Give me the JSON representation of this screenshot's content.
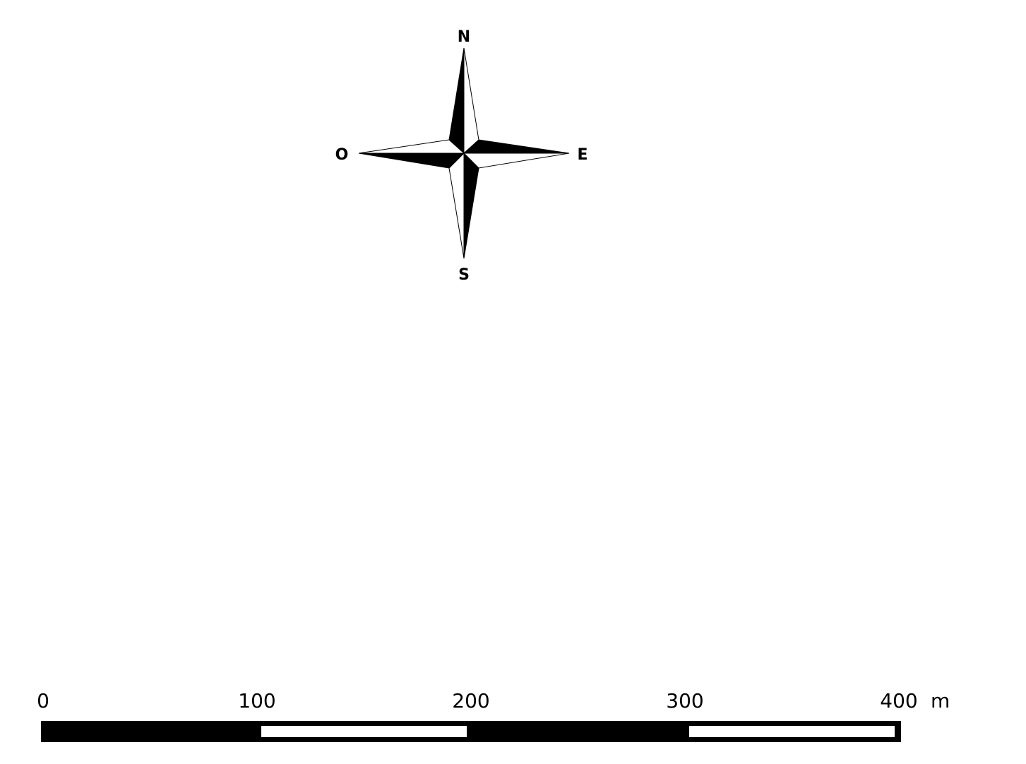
{
  "compass": {
    "north": "N",
    "east": "E",
    "south": "S",
    "west": "O"
  },
  "scale_bar": {
    "ticks": [
      "0",
      "100",
      "200",
      "300",
      "400"
    ],
    "tick_values": [
      0,
      100,
      200,
      300,
      400
    ],
    "unit": "m"
  },
  "colors": {
    "ink": "#000000",
    "paper": "#ffffff"
  }
}
